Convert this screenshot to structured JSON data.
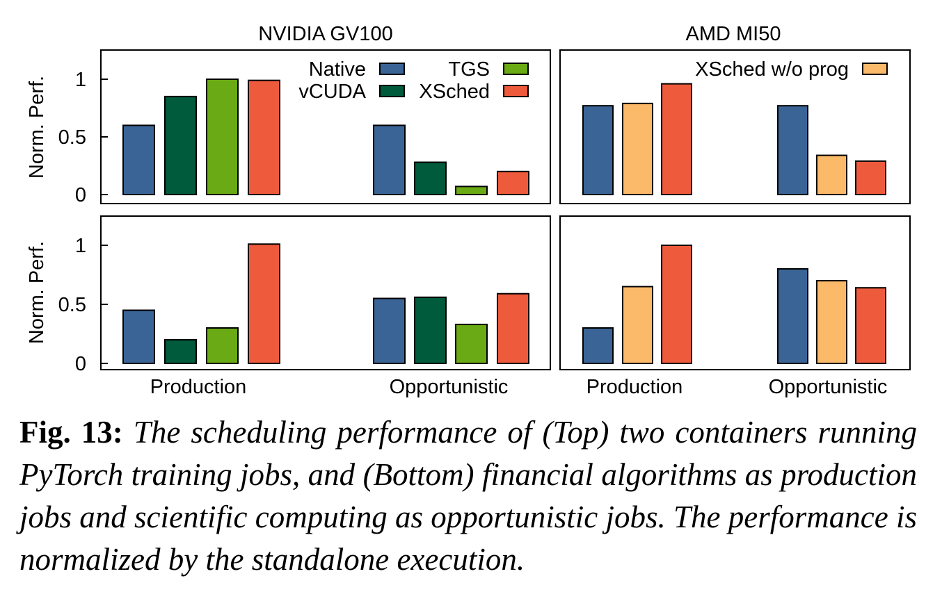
{
  "chart_data": [
    {
      "type": "bar",
      "panel": "top-left",
      "title": "NVIDIA GV100",
      "ylabel": "Norm. Perf.",
      "ylim": [
        0,
        1.25
      ],
      "yticks": [
        "0",
        "0.5",
        "1"
      ],
      "categories": [
        "Production",
        "Opportunistic"
      ],
      "legend": [
        {
          "label": "Native",
          "color": "#3a6496"
        },
        {
          "label": "vCUDA",
          "color": "#005a3c"
        },
        {
          "label": "TGS",
          "color": "#6aaa14"
        },
        {
          "label": "XSched",
          "color": "#ee5a3c"
        }
      ],
      "series": [
        {
          "name": "Native",
          "color": "#3a6496",
          "values": [
            0.6,
            0.6
          ]
        },
        {
          "name": "vCUDA",
          "color": "#005a3c",
          "values": [
            0.85,
            0.28
          ]
        },
        {
          "name": "TGS",
          "color": "#6aaa14",
          "values": [
            1.0,
            0.07
          ]
        },
        {
          "name": "XSched",
          "color": "#ee5a3c",
          "values": [
            0.99,
            0.2
          ]
        }
      ]
    },
    {
      "type": "bar",
      "panel": "top-right",
      "title": "AMD MI50",
      "ylim": [
        0,
        1.25
      ],
      "categories": [
        "Production",
        "Opportunistic"
      ],
      "legend": [
        {
          "label": "XSched w/o prog",
          "color": "#fbb96a"
        }
      ],
      "series": [
        {
          "name": "Native",
          "color": "#3a6496",
          "values": [
            0.77,
            0.77
          ]
        },
        {
          "name": "XSched w/o prog",
          "color": "#fbb96a",
          "values": [
            0.79,
            0.34
          ]
        },
        {
          "name": "XSched",
          "color": "#ee5a3c",
          "values": [
            0.96,
            0.29
          ]
        }
      ]
    },
    {
      "type": "bar",
      "panel": "bottom-left",
      "ylabel": "Norm. Perf.",
      "ylim": [
        0,
        1.25
      ],
      "yticks": [
        "0",
        "0.5",
        "1"
      ],
      "categories": [
        "Production",
        "Opportunistic"
      ],
      "series": [
        {
          "name": "Native",
          "color": "#3a6496",
          "values": [
            0.45,
            0.55
          ]
        },
        {
          "name": "vCUDA",
          "color": "#005a3c",
          "values": [
            0.2,
            0.56
          ]
        },
        {
          "name": "TGS",
          "color": "#6aaa14",
          "values": [
            0.3,
            0.33
          ]
        },
        {
          "name": "XSched",
          "color": "#ee5a3c",
          "values": [
            1.01,
            0.59
          ]
        }
      ]
    },
    {
      "type": "bar",
      "panel": "bottom-right",
      "ylim": [
        0,
        1.25
      ],
      "categories": [
        "Production",
        "Opportunistic"
      ],
      "series": [
        {
          "name": "Native",
          "color": "#3a6496",
          "values": [
            0.3,
            0.8
          ]
        },
        {
          "name": "XSched w/o prog",
          "color": "#fbb96a",
          "values": [
            0.65,
            0.7
          ]
        },
        {
          "name": "XSched",
          "color": "#ee5a3c",
          "values": [
            1.0,
            0.64
          ]
        }
      ]
    }
  ],
  "caption": {
    "label": "Fig. 13:",
    "text": "The scheduling performance of (Top) two containers running PyTorch training jobs, and (Bottom) financial algorithms as production jobs and scientific computing as opportunistic jobs. The performance is normalized by the standalone execution."
  }
}
